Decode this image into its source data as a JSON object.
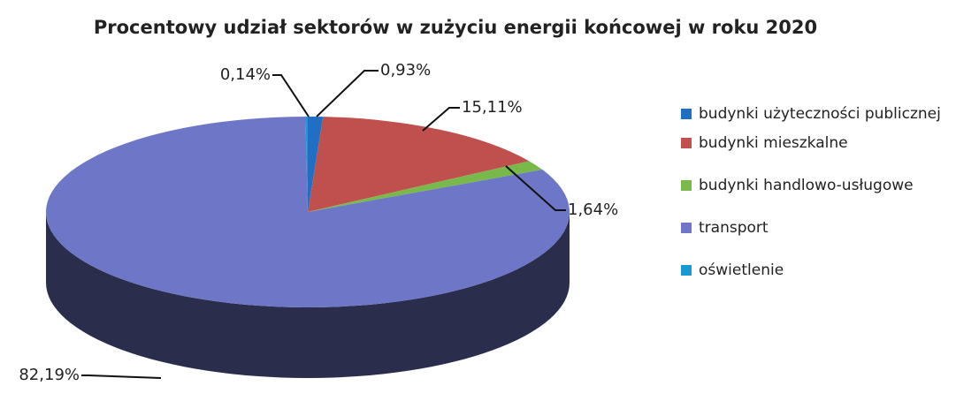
{
  "chart_data": {
    "type": "pie",
    "title": "Procentowy udział sektorów w zużyciu energii końcowej w roku 2020",
    "categories": [
      "budynki użyteczności publicznej",
      "budynki mieszkalne",
      "budynki handlowo-usługowe",
      "transport",
      "oświetlenie"
    ],
    "values": [
      0.93,
      15.11,
      1.64,
      82.19,
      0.14
    ],
    "value_labels": [
      "0,93%",
      "15,11%",
      "1,64%",
      "82,19%",
      "0,14%"
    ],
    "colors": [
      "#1f6fc4",
      "#c0504d",
      "#79b94c",
      "#6e76c8",
      "#1a9ad0"
    ],
    "legend": "right"
  }
}
